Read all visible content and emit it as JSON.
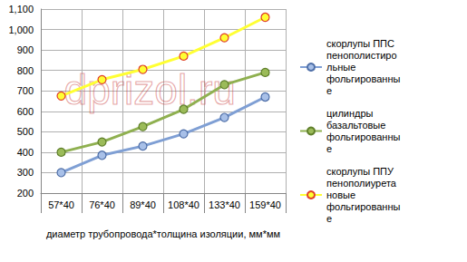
{
  "chart_data": {
    "type": "line",
    "x_label": "диаметр трубопровода*толщина изоляции, мм*мм",
    "categories": [
      "57*40",
      "76*40",
      "89*40",
      "108*40",
      "133*40",
      "159*40"
    ],
    "series": [
      {
        "name": "скорлупы ППС пенополистирольные фольгированные",
        "color": "#7f9fd4",
        "marker": "circle",
        "values": [
          300,
          385,
          430,
          490,
          570,
          670
        ]
      },
      {
        "name": "цилиндры базальтовые фольгированные",
        "color": "#8fb050",
        "marker": "circle",
        "values": [
          400,
          450,
          525,
          610,
          730,
          790
        ]
      },
      {
        "name": "скорлупы ППУ пенополиуретановые фольгированные",
        "color": "#ffff33",
        "marker": "circle",
        "values": [
          675,
          755,
          805,
          870,
          960,
          1060
        ]
      }
    ],
    "ylim": [
      200,
      1100
    ],
    "yticks": [
      200,
      300,
      400,
      500,
      600,
      700,
      800,
      900,
      1000,
      1100
    ],
    "grid": true,
    "legend": "right",
    "annotations": [
      "dprizol.ru"
    ]
  }
}
